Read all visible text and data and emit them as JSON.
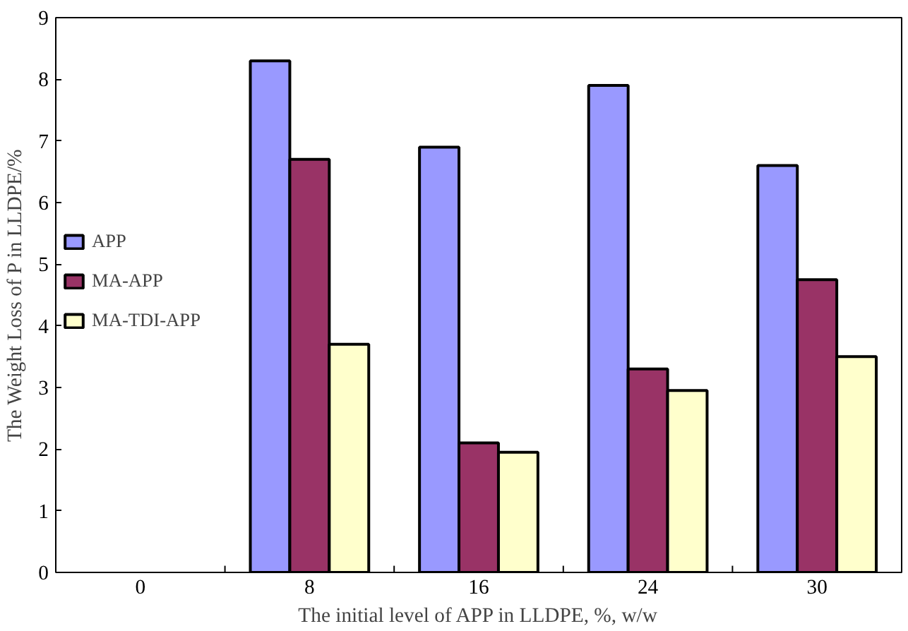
{
  "chart_data": {
    "type": "bar",
    "xlabel": "The initial level of APP in LLDPE, %, w/w",
    "ylabel": "The Weight Loss of P in LLDPE/%",
    "categories": [
      "0",
      "8",
      "16",
      "24",
      "30"
    ],
    "series": [
      {
        "name": "APP",
        "color": "#9999ff",
        "values": [
          null,
          8.3,
          6.9,
          7.9,
          6.6
        ]
      },
      {
        "name": "MA-APP",
        "color": "#993366",
        "values": [
          null,
          6.7,
          2.1,
          3.3,
          4.75
        ]
      },
      {
        "name": "MA-TDI-APP",
        "color": "#ffffcc",
        "values": [
          null,
          3.7,
          1.95,
          2.95,
          3.5
        ]
      }
    ],
    "ylim": [
      0,
      9
    ],
    "yticks": [
      0,
      1,
      2,
      3,
      4,
      5,
      6,
      7,
      8,
      9
    ],
    "grid": false,
    "legend": "left"
  }
}
